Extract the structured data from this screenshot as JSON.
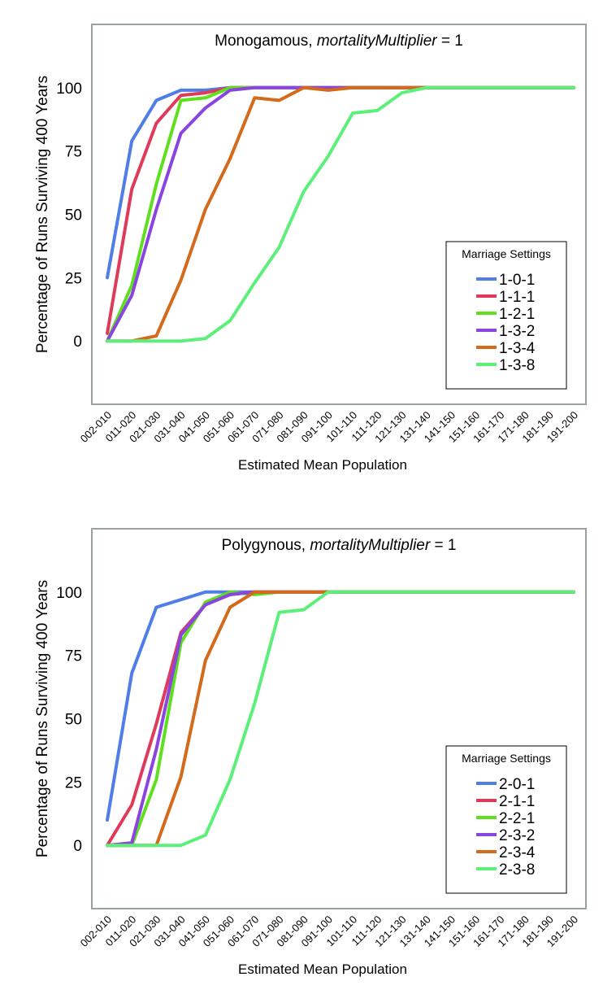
{
  "chart_data": [
    {
      "type": "line",
      "title_prefix": "Monogamous, ",
      "title_italic": "mortalityMultiplier",
      "title_suffix": " = 1",
      "xlabel": "Estimated Mean Population",
      "ylabel": "Percentage of Runs Surviving 400 Years",
      "ylim": [
        -25,
        125
      ],
      "yticks": [
        0,
        25,
        50,
        75,
        100
      ],
      "grid": false,
      "legend_title": "Marriage Settings",
      "legend_position": "right",
      "categories": [
        "002-010",
        "011-020",
        "021-030",
        "031-040",
        "041-050",
        "051-060",
        "061-070",
        "071-080",
        "081-090",
        "091-100",
        "101-110",
        "111-120",
        "121-130",
        "131-140",
        "141-150",
        "151-160",
        "161-170",
        "171-180",
        "181-190",
        "191-200"
      ],
      "series": [
        {
          "name": "1-0-1",
          "color": "#4f7ee6",
          "values": [
            25,
            79,
            95,
            99,
            99,
            100,
            100,
            100,
            100,
            100,
            100,
            100,
            100,
            100,
            100,
            100,
            100,
            100,
            100,
            100
          ]
        },
        {
          "name": "1-1-1",
          "color": "#e03a5b",
          "values": [
            3,
            60,
            86,
            97,
            98,
            100,
            100,
            100,
            100,
            100,
            100,
            100,
            100,
            100,
            100,
            100,
            100,
            100,
            100,
            100
          ]
        },
        {
          "name": "1-2-1",
          "color": "#5ee01e",
          "values": [
            0,
            22,
            62,
            95,
            96,
            100,
            100,
            100,
            100,
            100,
            100,
            100,
            100,
            100,
            100,
            100,
            100,
            100,
            100,
            100
          ]
        },
        {
          "name": "1-3-2",
          "color": "#8a44e0",
          "values": [
            0,
            18,
            52,
            82,
            92,
            99,
            100,
            100,
            100,
            100,
            100,
            100,
            100,
            100,
            100,
            100,
            100,
            100,
            100,
            100
          ]
        },
        {
          "name": "1-3-4",
          "color": "#d46a1c",
          "values": [
            0,
            0,
            2,
            24,
            52,
            72,
            96,
            95,
            100,
            99,
            100,
            100,
            100,
            100,
            100,
            100,
            100,
            100,
            100,
            100
          ]
        },
        {
          "name": "1-3-8",
          "color": "#5cf07a",
          "values": [
            0,
            0,
            0,
            0,
            1,
            8,
            23,
            37,
            59,
            73,
            90,
            91,
            98,
            100,
            100,
            100,
            100,
            100,
            100,
            100
          ]
        }
      ]
    },
    {
      "type": "line",
      "title_prefix": "Polygynous, ",
      "title_italic": "mortalityMultiplier",
      "title_suffix": " = 1",
      "xlabel": "Estimated Mean Population",
      "ylabel": "Percentage of Runs Surviving 400 Years",
      "ylim": [
        -25,
        125
      ],
      "yticks": [
        0,
        25,
        50,
        75,
        100
      ],
      "grid": false,
      "legend_title": "Marriage Settings",
      "legend_position": "right",
      "categories": [
        "002-010",
        "011-020",
        "021-030",
        "031-040",
        "041-050",
        "051-060",
        "061-070",
        "071-080",
        "081-090",
        "091-100",
        "101-110",
        "111-120",
        "121-130",
        "131-140",
        "141-150",
        "151-160",
        "161-170",
        "171-180",
        "181-190",
        "191-200"
      ],
      "series": [
        {
          "name": "2-0-1",
          "color": "#4f7ee6",
          "values": [
            10,
            68,
            94,
            97,
            100,
            100,
            100,
            100,
            100,
            100,
            100,
            100,
            100,
            100,
            100,
            100,
            100,
            100,
            100,
            100
          ]
        },
        {
          "name": "2-1-1",
          "color": "#e03a5b",
          "values": [
            0,
            16,
            48,
            84,
            95,
            99,
            100,
            100,
            100,
            100,
            100,
            100,
            100,
            100,
            100,
            100,
            100,
            100,
            100,
            100
          ]
        },
        {
          "name": "2-2-1",
          "color": "#5ee01e",
          "values": [
            0,
            0,
            26,
            80,
            96,
            100,
            99,
            100,
            100,
            100,
            100,
            100,
            100,
            100,
            100,
            100,
            100,
            100,
            100,
            100
          ]
        },
        {
          "name": "2-3-2",
          "color": "#8a44e0",
          "values": [
            0,
            1,
            38,
            83,
            95,
            99,
            100,
            100,
            100,
            100,
            100,
            100,
            100,
            100,
            100,
            100,
            100,
            100,
            100,
            100
          ]
        },
        {
          "name": "2-3-4",
          "color": "#d46a1c",
          "values": [
            0,
            0,
            0,
            27,
            73,
            94,
            100,
            100,
            100,
            100,
            100,
            100,
            100,
            100,
            100,
            100,
            100,
            100,
            100,
            100
          ]
        },
        {
          "name": "2-3-8",
          "color": "#5cf07a",
          "values": [
            0,
            0,
            0,
            0,
            4,
            26,
            56,
            92,
            93,
            100,
            100,
            100,
            100,
            100,
            100,
            100,
            100,
            100,
            100,
            100
          ]
        }
      ]
    }
  ]
}
